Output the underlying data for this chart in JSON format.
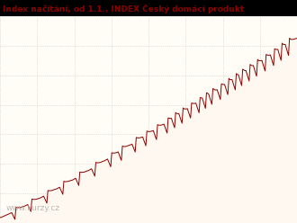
{
  "title": "Index načítání, od 1.1., INDEX Český domácí produkt",
  "title_color": "#8B0000",
  "title_fontsize": 6.5,
  "line_color": "#8B0000",
  "fill_color": "#FFF8F0",
  "background_color": "#000000",
  "chart_bg": "#FFFDF5",
  "watermark": "www.kurzy.cz",
  "watermark_color": "#AAAAAA",
  "grid_color": "#BBBBBB",
  "n_vgrid": 8,
  "n_hgrid": 7,
  "n_points": 280
}
